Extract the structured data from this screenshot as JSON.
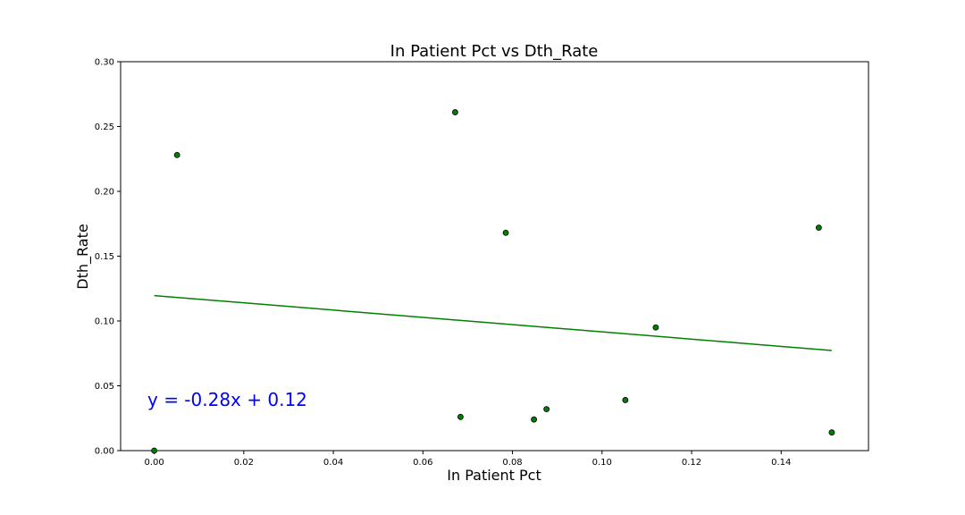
{
  "chart_data": {
    "type": "scatter",
    "title": "In Patient Pct vs Dth_Rate",
    "xlabel": "In Patient Pct",
    "ylabel": "Dth_Rate",
    "xlim": [
      -0.0075,
      0.1595
    ],
    "ylim": [
      0.0,
      0.3
    ],
    "x_ticks": [
      0.0,
      0.02,
      0.04,
      0.06,
      0.08,
      0.1,
      0.12,
      0.14
    ],
    "x_tick_labels": [
      "0.00",
      "0.02",
      "0.04",
      "0.06",
      "0.08",
      "0.10",
      "0.12",
      "0.14"
    ],
    "y_ticks": [
      0.0,
      0.05,
      0.1,
      0.15,
      0.2,
      0.25,
      0.3
    ],
    "y_tick_labels": [
      "0.00",
      "0.05",
      "0.10",
      "0.15",
      "0.20",
      "0.25",
      "0.30"
    ],
    "grid": false,
    "points": [
      {
        "x": 0.0,
        "y": 0.0
      },
      {
        "x": 0.0051,
        "y": 0.228
      },
      {
        "x": 0.0672,
        "y": 0.261
      },
      {
        "x": 0.0684,
        "y": 0.026
      },
      {
        "x": 0.0785,
        "y": 0.168
      },
      {
        "x": 0.0848,
        "y": 0.024
      },
      {
        "x": 0.0876,
        "y": 0.032
      },
      {
        "x": 0.1052,
        "y": 0.039
      },
      {
        "x": 0.112,
        "y": 0.095
      },
      {
        "x": 0.1484,
        "y": 0.172
      },
      {
        "x": 0.1513,
        "y": 0.014
      }
    ],
    "trendline": {
      "equation_label": "y = -0.28x + 0.12",
      "x_range": [
        0.0,
        0.1513
      ],
      "slope": -0.28,
      "intercept": 0.1196
    },
    "colors": {
      "point_fill": "#008000",
      "point_edge": "#000000",
      "trendline": "#008000",
      "equation": "#0000ff"
    }
  }
}
